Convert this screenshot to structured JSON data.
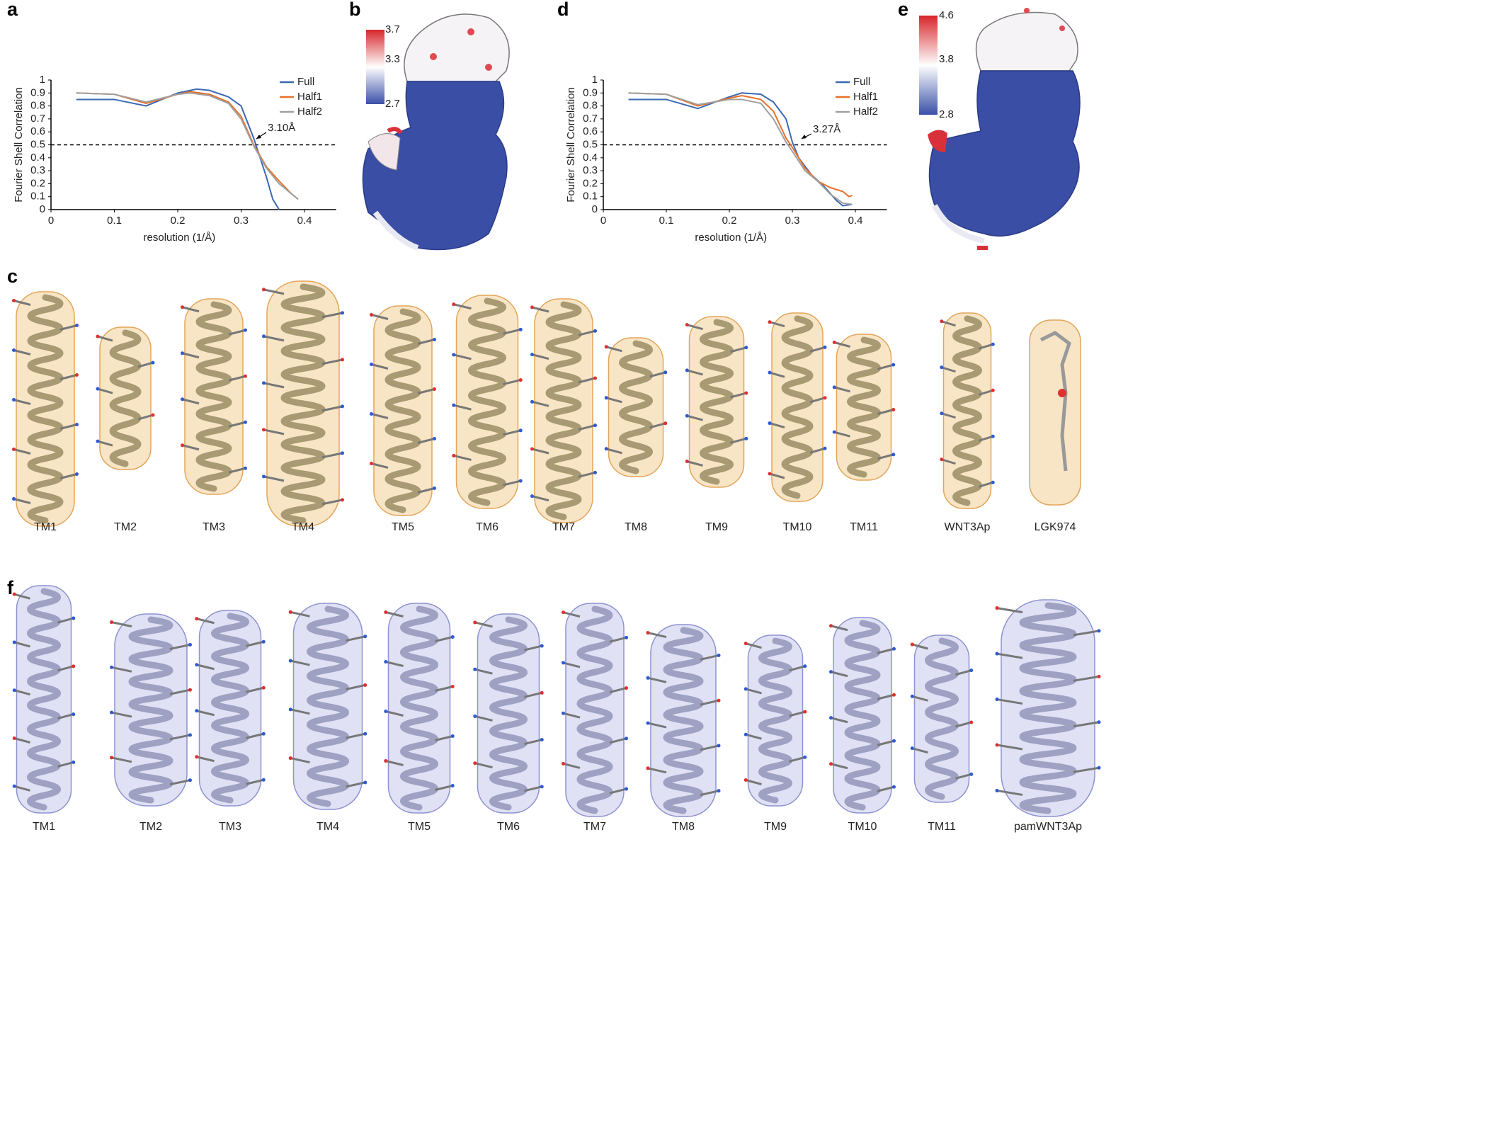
{
  "chart_data": [
    {
      "type": "line",
      "panel": "a",
      "xlabel": "resolution (1/Å)",
      "ylabel": "Fourier Shell Correlation",
      "xlim": [
        0,
        0.45
      ],
      "ylim": [
        0,
        1
      ],
      "xticks": [
        0,
        0.1,
        0.2,
        0.3,
        0.4
      ],
      "yticks": [
        0,
        0.1,
        0.2,
        0.3,
        0.4,
        0.5,
        0.6,
        0.7,
        0.8,
        0.9,
        1
      ],
      "reference_line": 0.5,
      "annotation": "3.10Å",
      "series": [
        {
          "name": "Full",
          "color": "#3b68b3",
          "x": [
            0.04,
            0.1,
            0.15,
            0.2,
            0.23,
            0.25,
            0.28,
            0.3,
            0.32,
            0.33,
            0.34,
            0.35,
            0.36
          ],
          "values": [
            0.85,
            0.85,
            0.8,
            0.9,
            0.93,
            0.92,
            0.87,
            0.8,
            0.55,
            0.4,
            0.25,
            0.08,
            0
          ]
        },
        {
          "name": "Half1",
          "color": "#e8702a",
          "x": [
            0.04,
            0.1,
            0.15,
            0.2,
            0.22,
            0.25,
            0.28,
            0.3,
            0.32,
            0.34,
            0.36,
            0.38,
            0.39
          ],
          "values": [
            0.9,
            0.89,
            0.82,
            0.89,
            0.91,
            0.89,
            0.83,
            0.72,
            0.5,
            0.33,
            0.22,
            0.12,
            0.08
          ]
        },
        {
          "name": "Half2",
          "color": "#a0a0a0",
          "x": [
            0.04,
            0.1,
            0.15,
            0.2,
            0.22,
            0.25,
            0.28,
            0.3,
            0.32,
            0.34,
            0.36,
            0.38,
            0.39
          ],
          "values": [
            0.9,
            0.89,
            0.83,
            0.89,
            0.9,
            0.88,
            0.82,
            0.7,
            0.49,
            0.32,
            0.2,
            0.12,
            0.08
          ]
        }
      ]
    },
    {
      "type": "line",
      "panel": "d",
      "xlabel": "resolution (1/Å)",
      "ylabel": "Fourier Shell Correlation",
      "xlim": [
        0,
        0.45
      ],
      "ylim": [
        0,
        1
      ],
      "xticks": [
        0,
        0.1,
        0.2,
        0.3,
        0.4
      ],
      "yticks": [
        0,
        0.1,
        0.2,
        0.3,
        0.4,
        0.5,
        0.6,
        0.7,
        0.8,
        0.9,
        1
      ],
      "reference_line": 0.5,
      "annotation": "3.27Å",
      "series": [
        {
          "name": "Full",
          "color": "#3b68b3",
          "x": [
            0.04,
            0.1,
            0.15,
            0.2,
            0.22,
            0.25,
            0.27,
            0.29,
            0.3,
            0.31,
            0.33,
            0.35,
            0.37,
            0.38,
            0.395
          ],
          "values": [
            0.85,
            0.85,
            0.78,
            0.87,
            0.9,
            0.89,
            0.83,
            0.7,
            0.52,
            0.4,
            0.27,
            0.18,
            0.07,
            0.03,
            0.04
          ]
        },
        {
          "name": "Half1",
          "color": "#e8702a",
          "x": [
            0.04,
            0.1,
            0.15,
            0.2,
            0.22,
            0.25,
            0.27,
            0.29,
            0.3,
            0.32,
            0.34,
            0.36,
            0.38,
            0.39,
            0.395
          ],
          "values": [
            0.9,
            0.89,
            0.8,
            0.86,
            0.88,
            0.85,
            0.76,
            0.55,
            0.48,
            0.32,
            0.22,
            0.17,
            0.14,
            0.1,
            0.11
          ]
        },
        {
          "name": "Half2",
          "color": "#a0a0a0",
          "x": [
            0.04,
            0.1,
            0.15,
            0.2,
            0.22,
            0.25,
            0.27,
            0.29,
            0.3,
            0.32,
            0.34,
            0.36,
            0.38,
            0.395
          ],
          "values": [
            0.9,
            0.89,
            0.81,
            0.85,
            0.85,
            0.82,
            0.7,
            0.52,
            0.45,
            0.3,
            0.22,
            0.12,
            0.05,
            0.04
          ]
        }
      ]
    }
  ],
  "maps": [
    {
      "panel": "b",
      "scale_lim": [
        2.7,
        3.7
      ],
      "ticks": [
        3.7,
        3.3,
        2.7
      ]
    },
    {
      "panel": "e",
      "scale_lim": [
        2.8,
        4.6
      ],
      "ticks": [
        4.6,
        3.8,
        2.8
      ]
    }
  ],
  "helices_c": {
    "panel": "c",
    "labels": [
      "TM1",
      "TM2",
      "TM3",
      "TM4",
      "TM5",
      "TM6",
      "TM7",
      "TM8",
      "TM9",
      "TM10",
      "TM11",
      "WNT3Ap",
      "LGK974"
    ]
  },
  "helices_f": {
    "panel": "f",
    "labels": [
      "TM1",
      "TM2",
      "TM3",
      "TM4",
      "TM5",
      "TM6",
      "TM7",
      "TM8",
      "TM9",
      "TM10",
      "TM11",
      "pamWNT3Ap"
    ]
  }
}
